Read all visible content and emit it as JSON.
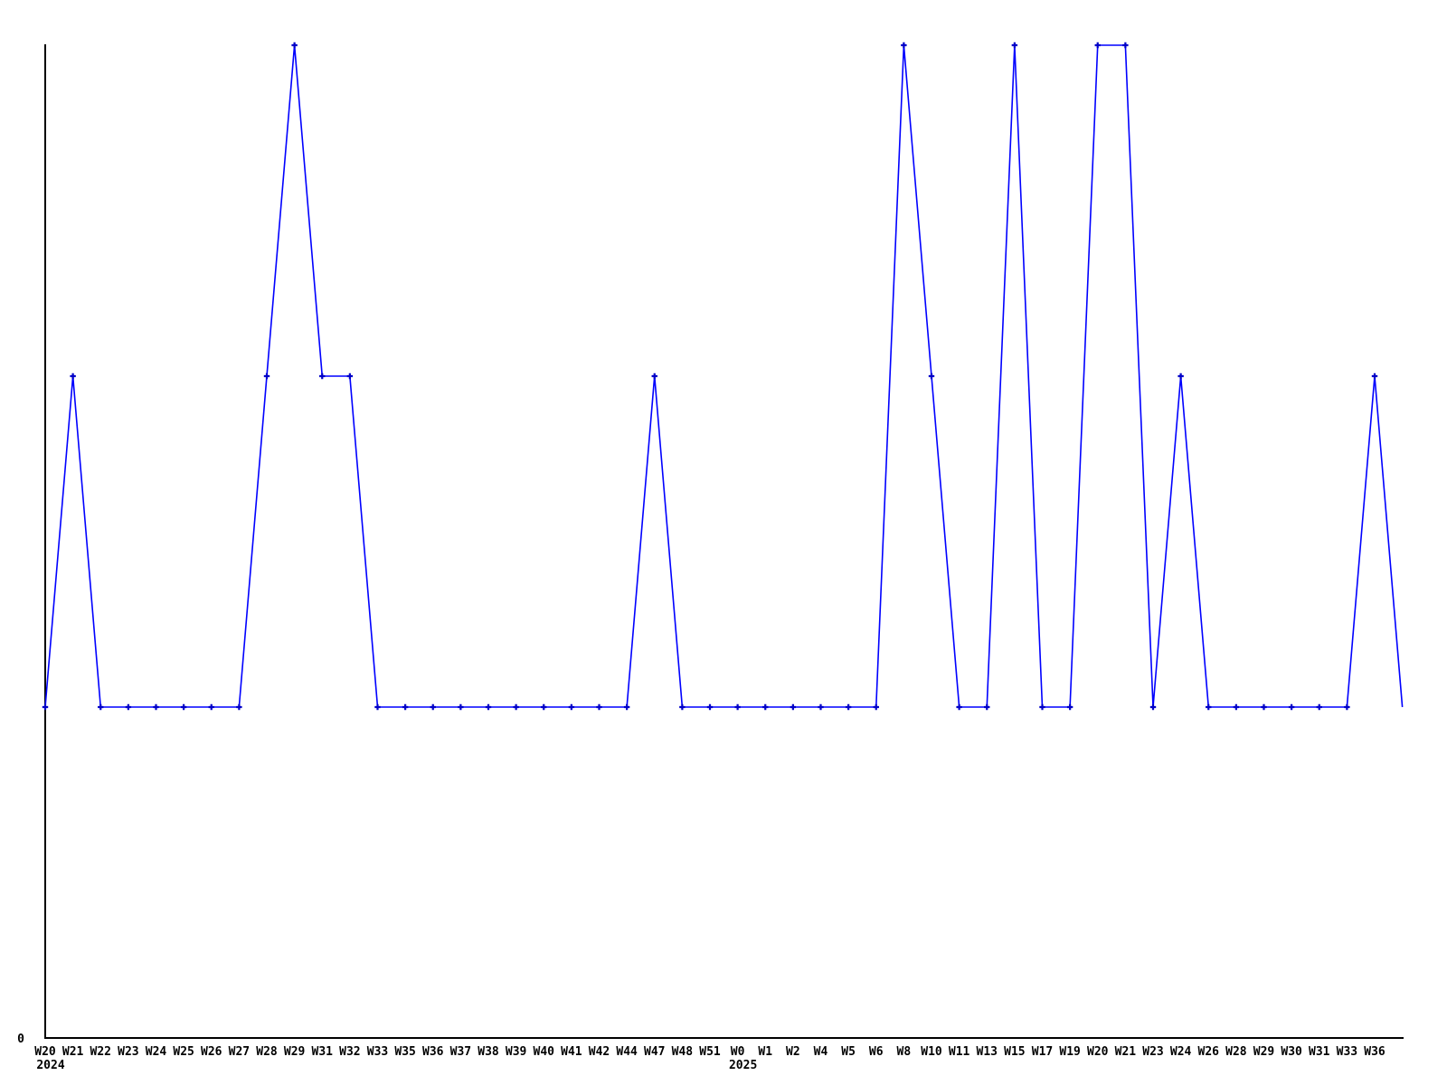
{
  "figure": {
    "background": "#ffffff",
    "axis_color": "#000000",
    "text_color": "#000000",
    "line_color": "#0000ff",
    "marker_color": "#0000c8"
  },
  "chart_data": {
    "type": "line",
    "title": "",
    "xlabel": "",
    "ylabel": "",
    "grid": false,
    "legend_position": "none",
    "marker": "plus",
    "ylim": [
      0,
      3
    ],
    "y_tick_labels": [
      "0"
    ],
    "categories": [
      "W20",
      "W21",
      "W22",
      "W23",
      "W24",
      "W25",
      "W26",
      "W27",
      "W28",
      "W29",
      "W31",
      "W32",
      "W33",
      "W35",
      "W36",
      "W37",
      "W38",
      "W39",
      "W40",
      "W41",
      "W42",
      "W44",
      "W47",
      "W48",
      "W51",
      "W0",
      "W1",
      "W2",
      "W4",
      "W5",
      "W6",
      "W8",
      "W10",
      "W11",
      "W13",
      "W15",
      "W17",
      "W19",
      "W20",
      "W21",
      "W23",
      "W24",
      "W26",
      "W28",
      "W29",
      "W30",
      "W31",
      "W33",
      "W36"
    ],
    "values": [
      1,
      2,
      1,
      1,
      1,
      1,
      1,
      1,
      2,
      3,
      2,
      2,
      1,
      1,
      1,
      1,
      1,
      1,
      1,
      1,
      1,
      1,
      2,
      1,
      1,
      1,
      1,
      1,
      1,
      1,
      1,
      3,
      2,
      1,
      1,
      3,
      1,
      1,
      3,
      3,
      1,
      2,
      1,
      1,
      1,
      1,
      1,
      1,
      2
    ],
    "year_rows": [
      {
        "at_index": 0,
        "label": "2024"
      },
      {
        "at_index": 25,
        "label": "2025"
      }
    ],
    "trailing_point": {
      "value": 1,
      "has_marker": false,
      "has_label": false
    }
  }
}
